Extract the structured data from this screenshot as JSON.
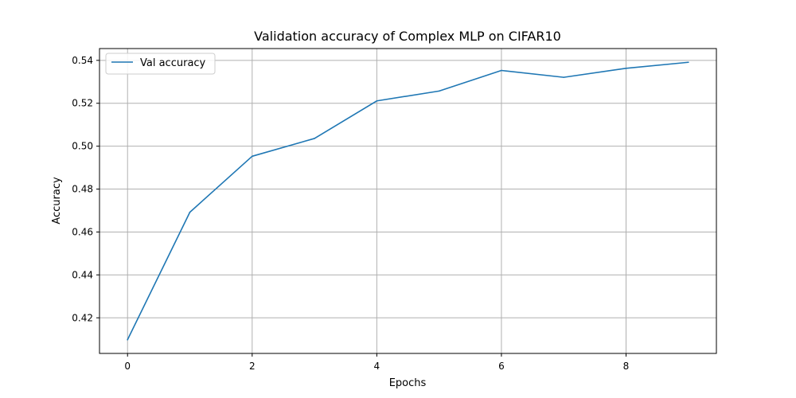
{
  "chart_data": {
    "type": "line",
    "title": "Validation accuracy of Complex MLP on CIFAR10",
    "xlabel": "Epochs",
    "ylabel": "Accuracy",
    "x": [
      0,
      1,
      2,
      3,
      4,
      5,
      6,
      7,
      8,
      9
    ],
    "series": [
      {
        "name": "Val accuracy",
        "color": "#1f77b4",
        "values": [
          0.4098,
          0.4692,
          0.4953,
          0.5036,
          0.5211,
          0.5257,
          0.5353,
          0.5321,
          0.5363,
          0.5391
        ]
      }
    ],
    "xlim": [
      -0.45,
      9.45
    ],
    "ylim": [
      0.4034,
      0.5455
    ],
    "xticks": [
      0,
      2,
      4,
      6,
      8
    ],
    "xtick_labels": [
      "0",
      "2",
      "4",
      "6",
      "8"
    ],
    "yticks": [
      0.42,
      0.44,
      0.46,
      0.48,
      0.5,
      0.52,
      0.54
    ],
    "ytick_labels": [
      "0.42",
      "0.44",
      "0.46",
      "0.48",
      "0.50",
      "0.52",
      "0.54"
    ],
    "grid": true,
    "legend_position": "top-left"
  }
}
